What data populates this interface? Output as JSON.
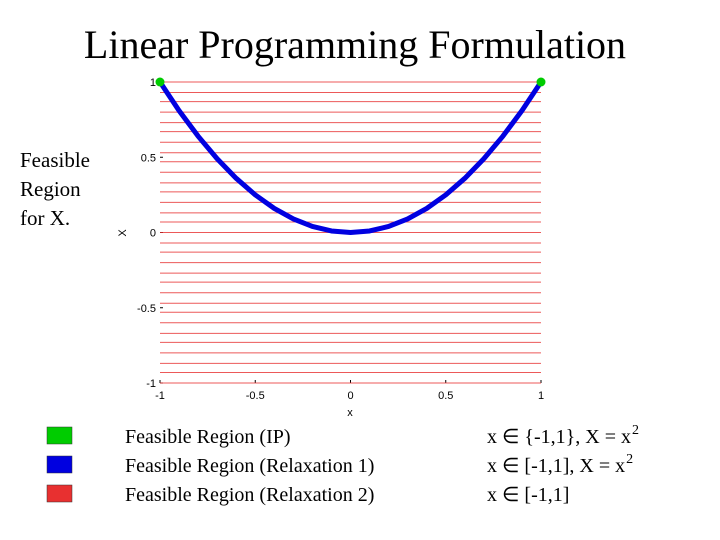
{
  "chart_data": {
    "type": "line",
    "title": "Linear Programming Formulation",
    "annotation": [
      "Feasible",
      "Region",
      "for X."
    ],
    "x_label": "x",
    "y_label": "X",
    "xlim": [
      -1,
      1
    ],
    "ylim": [
      -1,
      1
    ],
    "xticks": [
      -1,
      -0.5,
      0,
      0.5,
      1
    ],
    "yticks": [
      -1,
      -0.5,
      0,
      0.5,
      1
    ],
    "series": [
      {
        "name": "Feasible Region (IP)",
        "color": "#00cc00",
        "style": "points",
        "condition": "x ∈ {-1,1}, X = x",
        "condition_sup": "2",
        "x": [
          -1,
          1
        ],
        "values": [
          1,
          1
        ]
      },
      {
        "name": "Feasible Region (Relaxation 1)",
        "color": "#0000e0",
        "style": "line",
        "condition": "x ∈ [-1,1], X = x",
        "condition_sup": "2",
        "x": [
          -1,
          -0.9,
          -0.8,
          -0.7,
          -0.6,
          -0.5,
          -0.4,
          -0.3,
          -0.2,
          -0.1,
          0,
          0.1,
          0.2,
          0.3,
          0.4,
          0.5,
          0.6,
          0.7,
          0.8,
          0.9,
          1
        ],
        "values": [
          1,
          0.81,
          0.64,
          0.49,
          0.36,
          0.25,
          0.16,
          0.09,
          0.04,
          0.01,
          0,
          0.01,
          0.04,
          0.09,
          0.16,
          0.25,
          0.36,
          0.49,
          0.64,
          0.81,
          1
        ]
      },
      {
        "name": "Feasible Region (Relaxation 2)",
        "color": "#e83030",
        "style": "hlines",
        "condition": "x ∈ [-1,1]",
        "values": [
          -1,
          -0.93,
          -0.87,
          -0.8,
          -0.73,
          -0.67,
          -0.6,
          -0.53,
          -0.47,
          -0.4,
          -0.33,
          -0.27,
          -0.2,
          -0.13,
          -0.07,
          0,
          0.07,
          0.13,
          0.2,
          0.27,
          0.33,
          0.4,
          0.47,
          0.53,
          0.6,
          0.67,
          0.73,
          0.8,
          0.87,
          0.93,
          1
        ]
      }
    ]
  }
}
